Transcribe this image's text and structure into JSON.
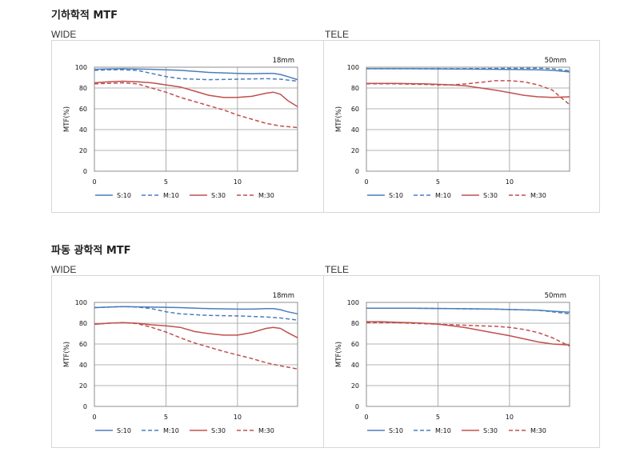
{
  "sections": [
    {
      "title": "기하학적 MTF"
    },
    {
      "title": "파동 광학적 MTF"
    }
  ],
  "colors": {
    "s10": "#4a7ebb",
    "m10": "#4a7ebb",
    "s30": "#c0504d",
    "m30": "#c0504d",
    "grid": "#9a9a9a",
    "frame": "#8c8c8c",
    "border": "#d8d8d8"
  },
  "chart_data": [
    {
      "type": "line",
      "panel": "WIDE",
      "focal": "18mm",
      "ylabel": "MTF(%)",
      "xlim": [
        0,
        14.2
      ],
      "ylim": [
        0,
        100
      ],
      "xticks": [
        0,
        5,
        10
      ],
      "yticks": [
        0,
        20,
        40,
        60,
        80,
        100
      ],
      "series": [
        {
          "name": "S:10",
          "style": "solid",
          "color": "#4a7ebb",
          "x": [
            0,
            2,
            4,
            6,
            8,
            10,
            11,
            12,
            12.5,
            13,
            13.5,
            14.2
          ],
          "y": [
            98,
            98.5,
            98,
            97,
            95,
            94,
            93.8,
            94,
            94,
            93,
            91,
            88
          ]
        },
        {
          "name": "M:10",
          "style": "dashed",
          "color": "#4a7ebb",
          "x": [
            0,
            1,
            2,
            3,
            4,
            5,
            6,
            8,
            10,
            12,
            13,
            14.2
          ],
          "y": [
            97,
            97.5,
            97.5,
            97,
            94,
            91,
            89,
            88,
            88.5,
            89,
            88.5,
            86.5
          ]
        },
        {
          "name": "S:30",
          "style": "solid",
          "color": "#c0504d",
          "x": [
            0,
            1,
            2,
            3,
            4,
            5,
            6,
            7,
            8,
            9,
            10,
            11,
            12,
            12.5,
            13,
            13.5,
            14.2
          ],
          "y": [
            85,
            86,
            86.5,
            86,
            85,
            83,
            81,
            77,
            73,
            71,
            71,
            72,
            75,
            76,
            74,
            68,
            62
          ]
        },
        {
          "name": "M:30",
          "style": "dashed",
          "color": "#c0504d",
          "x": [
            0,
            1,
            2,
            3,
            4,
            5,
            6,
            7,
            8,
            9,
            10,
            11,
            12,
            13,
            14.2
          ],
          "y": [
            84,
            84.5,
            85,
            84,
            80,
            76,
            71,
            67,
            63,
            59,
            54,
            50,
            46,
            43.5,
            42
          ]
        }
      ]
    },
    {
      "type": "line",
      "panel": "TELE",
      "focal": "50mm",
      "ylabel": "MTF(%)",
      "xlim": [
        0,
        14.2
      ],
      "ylim": [
        0,
        100
      ],
      "xticks": [
        0,
        5,
        10
      ],
      "yticks": [
        0,
        20,
        40,
        60,
        80,
        100
      ],
      "series": [
        {
          "name": "S:10",
          "style": "solid",
          "color": "#4a7ebb",
          "x": [
            0,
            3,
            6,
            9,
            12,
            13,
            14.2
          ],
          "y": [
            98.5,
            98.5,
            98.2,
            98,
            97.5,
            97,
            95.5
          ]
        },
        {
          "name": "M:10",
          "style": "dashed",
          "color": "#4a7ebb",
          "x": [
            0,
            3,
            6,
            9,
            12,
            13,
            14.2
          ],
          "y": [
            98.5,
            98.5,
            98.5,
            98.8,
            99,
            98.5,
            96.5
          ]
        },
        {
          "name": "S:30",
          "style": "solid",
          "color": "#c0504d",
          "x": [
            0,
            2,
            4,
            6,
            7,
            8,
            9,
            10,
            11,
            12,
            13,
            14.2
          ],
          "y": [
            84.5,
            84.5,
            84,
            83,
            82,
            80,
            78,
            75.5,
            73,
            71.5,
            71,
            71.5
          ]
        },
        {
          "name": "M:30",
          "style": "dashed",
          "color": "#c0504d",
          "x": [
            0,
            2,
            4,
            5,
            6,
            7,
            8,
            9,
            10,
            11,
            12,
            13,
            13.5,
            14.2
          ],
          "y": [
            84,
            84,
            83.5,
            83,
            83,
            84,
            85.5,
            87,
            87,
            86,
            83,
            78,
            72,
            64
          ]
        }
      ]
    },
    {
      "type": "line",
      "panel": "WIDE",
      "focal": "18mm",
      "ylabel": "MTF(%)",
      "xlim": [
        0,
        14.2
      ],
      "ylim": [
        0,
        100
      ],
      "xticks": [
        0,
        5,
        10
      ],
      "yticks": [
        0,
        20,
        40,
        60,
        80,
        100
      ],
      "series": [
        {
          "name": "S:10",
          "style": "solid",
          "color": "#4a7ebb",
          "x": [
            0,
            2,
            4,
            6,
            8,
            10,
            11,
            12,
            12.5,
            13,
            13.5,
            14.2
          ],
          "y": [
            95,
            96,
            95.5,
            95,
            94,
            93.5,
            93.5,
            94,
            94,
            93,
            91,
            89
          ]
        },
        {
          "name": "M:10",
          "style": "dashed",
          "color": "#4a7ebb",
          "x": [
            0,
            1,
            2,
            3,
            4,
            5,
            6,
            8,
            10,
            12,
            13,
            14.2
          ],
          "y": [
            95,
            95.5,
            96,
            95.5,
            94,
            91,
            89,
            87.5,
            87,
            86,
            85,
            83
          ]
        },
        {
          "name": "S:30",
          "style": "solid",
          "color": "#c0504d",
          "x": [
            0,
            1,
            2,
            3,
            4,
            5,
            6,
            7,
            8,
            9,
            10,
            11,
            12,
            12.5,
            13,
            13.5,
            14.2
          ],
          "y": [
            79,
            80,
            80.5,
            80,
            78.5,
            77.5,
            76,
            72,
            70,
            68.5,
            68.5,
            71,
            75,
            76,
            75,
            71,
            66
          ]
        },
        {
          "name": "M:30",
          "style": "dashed",
          "color": "#c0504d",
          "x": [
            0,
            1,
            2,
            3,
            4,
            5,
            6,
            7,
            8,
            9,
            10,
            11,
            12,
            13,
            14.2
          ],
          "y": [
            79,
            80,
            80.5,
            79.5,
            76,
            71.5,
            66,
            61,
            57,
            53,
            49.5,
            46,
            42,
            39,
            36
          ]
        }
      ]
    },
    {
      "type": "line",
      "panel": "TELE",
      "focal": "50mm",
      "ylabel": "MTF(%)",
      "xlim": [
        0,
        14.2
      ],
      "ylim": [
        0,
        100
      ],
      "xticks": [
        0,
        5,
        10
      ],
      "yticks": [
        0,
        20,
        40,
        60,
        80,
        100
      ],
      "series": [
        {
          "name": "S:10",
          "style": "solid",
          "color": "#4a7ebb",
          "x": [
            0,
            3,
            6,
            9,
            12,
            13,
            14.2
          ],
          "y": [
            94.5,
            94.5,
            94,
            93.5,
            92.5,
            91.5,
            90.5
          ]
        },
        {
          "name": "M:10",
          "style": "dashed",
          "color": "#4a7ebb",
          "x": [
            0,
            3,
            6,
            9,
            12,
            13,
            14.2
          ],
          "y": [
            94.5,
            94.5,
            94,
            93.5,
            92.5,
            91,
            89
          ]
        },
        {
          "name": "S:30",
          "style": "solid",
          "color": "#c0504d",
          "x": [
            0,
            1,
            2,
            3,
            4,
            5,
            6,
            7,
            8,
            9,
            10,
            11,
            12,
            13,
            14.2
          ],
          "y": [
            81.5,
            81.5,
            81,
            80.5,
            80,
            79,
            77.5,
            75.5,
            73,
            70.5,
            68,
            65,
            62,
            60,
            59
          ]
        },
        {
          "name": "M:30",
          "style": "dashed",
          "color": "#c0504d",
          "x": [
            0,
            1,
            2,
            3,
            4,
            5,
            6,
            7,
            8,
            9,
            10,
            11,
            12,
            13,
            14.2
          ],
          "y": [
            80.5,
            80.5,
            80.5,
            80,
            79.5,
            79,
            78.5,
            78,
            77.5,
            77,
            76,
            74,
            71,
            66,
            58
          ]
        }
      ]
    }
  ]
}
